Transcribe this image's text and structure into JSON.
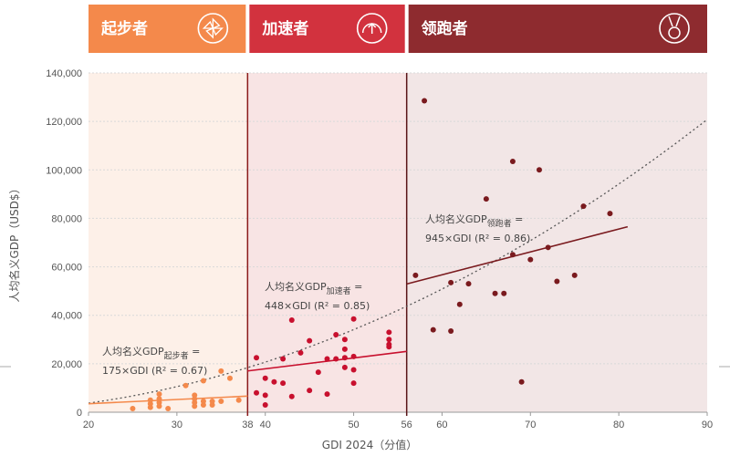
{
  "chart_data": {
    "type": "scatter",
    "xlabel": "GDI 2024（分值）",
    "ylabel": "人均名义GDP（USD$）",
    "xlim": [
      20,
      90
    ],
    "ylim": [
      0,
      140000
    ],
    "x_ticks": [
      20,
      30,
      38,
      40,
      50,
      56,
      60,
      70,
      80,
      90
    ],
    "y_ticks": [
      "0",
      "20,000",
      "40,000",
      "60,000",
      "80,000",
      "100,000",
      "120,000",
      "140,000"
    ],
    "y_tick_values": [
      0,
      20000,
      40000,
      60000,
      80000,
      100000,
      120000,
      140000
    ],
    "grid": "horizontal",
    "bands": [
      {
        "label": "起步者",
        "x_from": 20,
        "x_to": 38,
        "color": "#F4894B",
        "bg": "#FDF0E8",
        "icon": "pinwheel-icon"
      },
      {
        "label": "加速者",
        "x_from": 38,
        "x_to": 56,
        "color": "#D2323E",
        "bg": "#F8E4E4",
        "icon": "gauge-icon"
      },
      {
        "label": "领跑者",
        "x_from": 56,
        "x_to": 90,
        "color": "#8E2B2F",
        "bg": "#F2E6E6",
        "icon": "medal-icon"
      }
    ],
    "series": [
      {
        "color": "#F4894B",
        "points": [
          [
            25,
            1500
          ],
          [
            27,
            2000
          ],
          [
            27,
            3500
          ],
          [
            27,
            5000
          ],
          [
            28,
            2500
          ],
          [
            28,
            4000
          ],
          [
            28,
            5500
          ],
          [
            28,
            7500
          ],
          [
            29,
            1500
          ],
          [
            31,
            11000
          ],
          [
            32,
            2500
          ],
          [
            32,
            4000
          ],
          [
            32,
            5500
          ],
          [
            32,
            7000
          ],
          [
            33,
            3000
          ],
          [
            33,
            4500
          ],
          [
            33,
            13000
          ],
          [
            34,
            3000
          ],
          [
            34,
            4500
          ],
          [
            35,
            4500
          ],
          [
            35,
            17000
          ],
          [
            36,
            14000
          ],
          [
            37,
            5000
          ]
        ],
        "fit": {
          "slope": 175,
          "x_from": 20,
          "x_to": 38,
          "prefix": "人均名义GDP",
          "sub": "起步者",
          "suffix": " =",
          "line2": "175×GDI (R² = 0.67)"
        }
      },
      {
        "color": "#C8102E",
        "points": [
          [
            39,
            22500
          ],
          [
            39,
            8000
          ],
          [
            40,
            14000
          ],
          [
            40,
            3000
          ],
          [
            40,
            7000
          ],
          [
            41,
            12500
          ],
          [
            42,
            12000
          ],
          [
            42,
            22000
          ],
          [
            43,
            38000
          ],
          [
            43,
            6500
          ],
          [
            44,
            24500
          ],
          [
            45,
            29500
          ],
          [
            45,
            9000
          ],
          [
            46,
            16500
          ],
          [
            47,
            7500
          ],
          [
            47,
            22000
          ],
          [
            48,
            32000
          ],
          [
            48,
            22000
          ],
          [
            49,
            26000
          ],
          [
            49,
            30000
          ],
          [
            49,
            18500
          ],
          [
            49,
            22500
          ],
          [
            50,
            38500
          ],
          [
            50,
            12000
          ],
          [
            50,
            17500
          ],
          [
            50,
            23000
          ],
          [
            54,
            33000
          ],
          [
            54,
            30000
          ],
          [
            54,
            28000
          ],
          [
            54,
            27000
          ]
        ],
        "fit": {
          "slope": 448,
          "x_from": 38,
          "x_to": 56,
          "prefix": "人均名义GDP",
          "sub": "加速者",
          "suffix": " =",
          "line2": "448×GDI (R² = 0.85)"
        }
      },
      {
        "color": "#7A1A1E",
        "points": [
          [
            57,
            56500
          ],
          [
            58,
            128500
          ],
          [
            59,
            34000
          ],
          [
            61,
            33500
          ],
          [
            61,
            53500
          ],
          [
            62,
            44500
          ],
          [
            63,
            53000
          ],
          [
            65,
            88000
          ],
          [
            66,
            49000
          ],
          [
            67,
            49000
          ],
          [
            68,
            103500
          ],
          [
            68,
            65000
          ],
          [
            69,
            12500
          ],
          [
            70,
            63000
          ],
          [
            71,
            100000
          ],
          [
            72,
            68000
          ],
          [
            73,
            54000
          ],
          [
            75,
            56500
          ],
          [
            76,
            85000
          ],
          [
            79,
            82000
          ]
        ],
        "fit": {
          "slope": 945,
          "x_from": 56,
          "x_to": 81,
          "prefix": "人均名义GDP",
          "sub": "领跑者",
          "suffix": " =",
          "line2": "945×GDI (R² = 0.86)"
        }
      }
    ]
  }
}
